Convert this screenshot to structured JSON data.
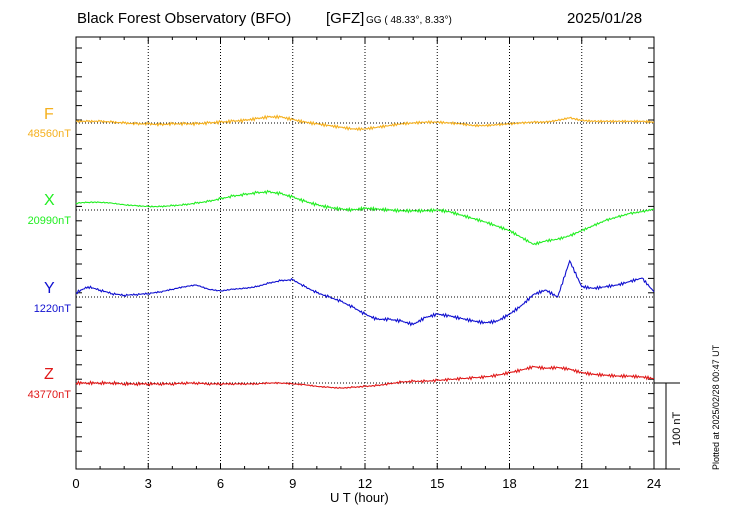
{
  "header": {
    "title": "Black Forest Observatory (BFO)",
    "institute": "[GFZ]",
    "coords": "GG ( 48.33°,   8.33°)",
    "date": "2025/01/28"
  },
  "footer": {
    "plotted": "Plotted at 2025/02/28 00:47 UT"
  },
  "chart_data": {
    "type": "line",
    "title": "Black Forest Observatory (BFO)",
    "xlabel": "U T (hour)",
    "xlim": [
      0,
      24
    ],
    "xticks": [
      "0",
      "3",
      "6",
      "9",
      "12",
      "15",
      "18",
      "21",
      "24"
    ],
    "scale_bar": "100 nT",
    "grid": true,
    "series": [
      {
        "name": "F",
        "baseline": "48560nT",
        "color": "#f5b01e",
        "offset_nT": 40,
        "x": [
          0,
          0.5,
          1,
          1.5,
          2,
          2.5,
          3,
          3.5,
          4,
          4.5,
          5,
          5.5,
          6,
          6.5,
          7,
          7.5,
          8,
          8.5,
          9,
          9.5,
          10,
          10.5,
          11,
          11.5,
          12,
          12.5,
          13,
          13.5,
          14,
          14.5,
          15,
          15.5,
          16,
          16.5,
          17,
          17.5,
          18,
          18.5,
          19,
          19.5,
          20,
          20.5,
          21,
          21.5,
          22,
          22.5,
          23,
          23.5,
          24
        ],
        "y": [
          2,
          2,
          2,
          1,
          0,
          -1,
          -1,
          -2,
          -1,
          -1,
          -1,
          0,
          1,
          2,
          3,
          5,
          7,
          7,
          4,
          1,
          -1,
          -3,
          -5,
          -7,
          -7,
          -5,
          -3,
          -1,
          0,
          1,
          1,
          0,
          -1,
          -3,
          -3,
          -2,
          -1,
          0,
          1,
          1,
          3,
          6,
          3,
          2,
          2,
          2,
          2,
          2,
          1
        ]
      },
      {
        "name": "X",
        "baseline": "20990nT",
        "color": "#22ee22",
        "offset_nT": 40,
        "x": [
          0,
          0.5,
          1,
          1.5,
          2,
          2.5,
          3,
          3.5,
          4,
          4.5,
          5,
          5.5,
          6,
          6.5,
          7,
          7.5,
          8,
          8.5,
          9,
          9.5,
          10,
          10.5,
          11,
          11.5,
          12,
          12.5,
          13,
          13.5,
          14,
          14.5,
          15,
          15.5,
          16,
          16.5,
          17,
          17.5,
          18,
          18.5,
          19,
          19.5,
          20,
          20.5,
          21,
          21.5,
          22,
          22.5,
          23,
          23.5,
          24
        ],
        "y": [
          8,
          9,
          9,
          8,
          6,
          5,
          4,
          4,
          5,
          6,
          8,
          10,
          13,
          16,
          18,
          20,
          21,
          19,
          15,
          10,
          6,
          3,
          1,
          0,
          2,
          1,
          0,
          -1,
          -1,
          -1,
          0,
          -2,
          -6,
          -10,
          -14,
          -19,
          -24,
          -32,
          -40,
          -36,
          -34,
          -30,
          -24,
          -18,
          -12,
          -8,
          -4,
          -2,
          1
        ]
      },
      {
        "name": "Y",
        "baseline": "1220nT",
        "color": "#1010d0",
        "offset_nT": 40,
        "x": [
          0,
          0.5,
          1,
          1.5,
          2,
          2.5,
          3,
          3.5,
          4,
          4.5,
          5,
          5.5,
          6,
          6.5,
          7,
          7.5,
          8,
          8.5,
          9,
          9.5,
          10,
          10.5,
          11,
          11.5,
          12,
          12.5,
          13,
          13.5,
          14,
          14.5,
          15,
          15.5,
          16,
          16.5,
          17,
          17.5,
          18,
          18.5,
          19,
          19.5,
          20,
          20.5,
          21,
          21.5,
          22,
          22.5,
          23,
          23.5,
          24
        ],
        "y": [
          5,
          12,
          8,
          4,
          2,
          3,
          4,
          6,
          9,
          12,
          14,
          9,
          7,
          9,
          10,
          12,
          16,
          19,
          20,
          12,
          5,
          0,
          -5,
          -12,
          -20,
          -26,
          -26,
          -28,
          -32,
          -24,
          -20,
          -22,
          -25,
          -28,
          -30,
          -28,
          -20,
          -10,
          3,
          8,
          0,
          42,
          12,
          10,
          12,
          14,
          18,
          22,
          6
        ]
      },
      {
        "name": "Z",
        "baseline": "43770nT",
        "color": "#e01818",
        "offset_nT": 40,
        "x": [
          0,
          0.5,
          1,
          1.5,
          2,
          2.5,
          3,
          3.5,
          4,
          4.5,
          5,
          5.5,
          6,
          6.5,
          7,
          7.5,
          8,
          8.5,
          9,
          9.5,
          10,
          10.5,
          11,
          11.5,
          12,
          12.5,
          13,
          13.5,
          14,
          14.5,
          15,
          15.5,
          16,
          16.5,
          17,
          17.5,
          18,
          18.5,
          19,
          19.5,
          20,
          20.5,
          21,
          21.5,
          22,
          22.5,
          23,
          23.5,
          24
        ],
        "y": [
          0,
          0,
          0,
          0,
          -1,
          -1,
          -1,
          -1,
          -1,
          0,
          0,
          -1,
          -1,
          -1,
          -1,
          -1,
          0,
          0,
          -1,
          -2,
          -4,
          -5,
          -6,
          -5,
          -4,
          -3,
          -1,
          1,
          2,
          2,
          3,
          4,
          5,
          6,
          7,
          9,
          12,
          15,
          19,
          17,
          18,
          16,
          12,
          10,
          9,
          8,
          8,
          7,
          5
        ]
      }
    ]
  }
}
